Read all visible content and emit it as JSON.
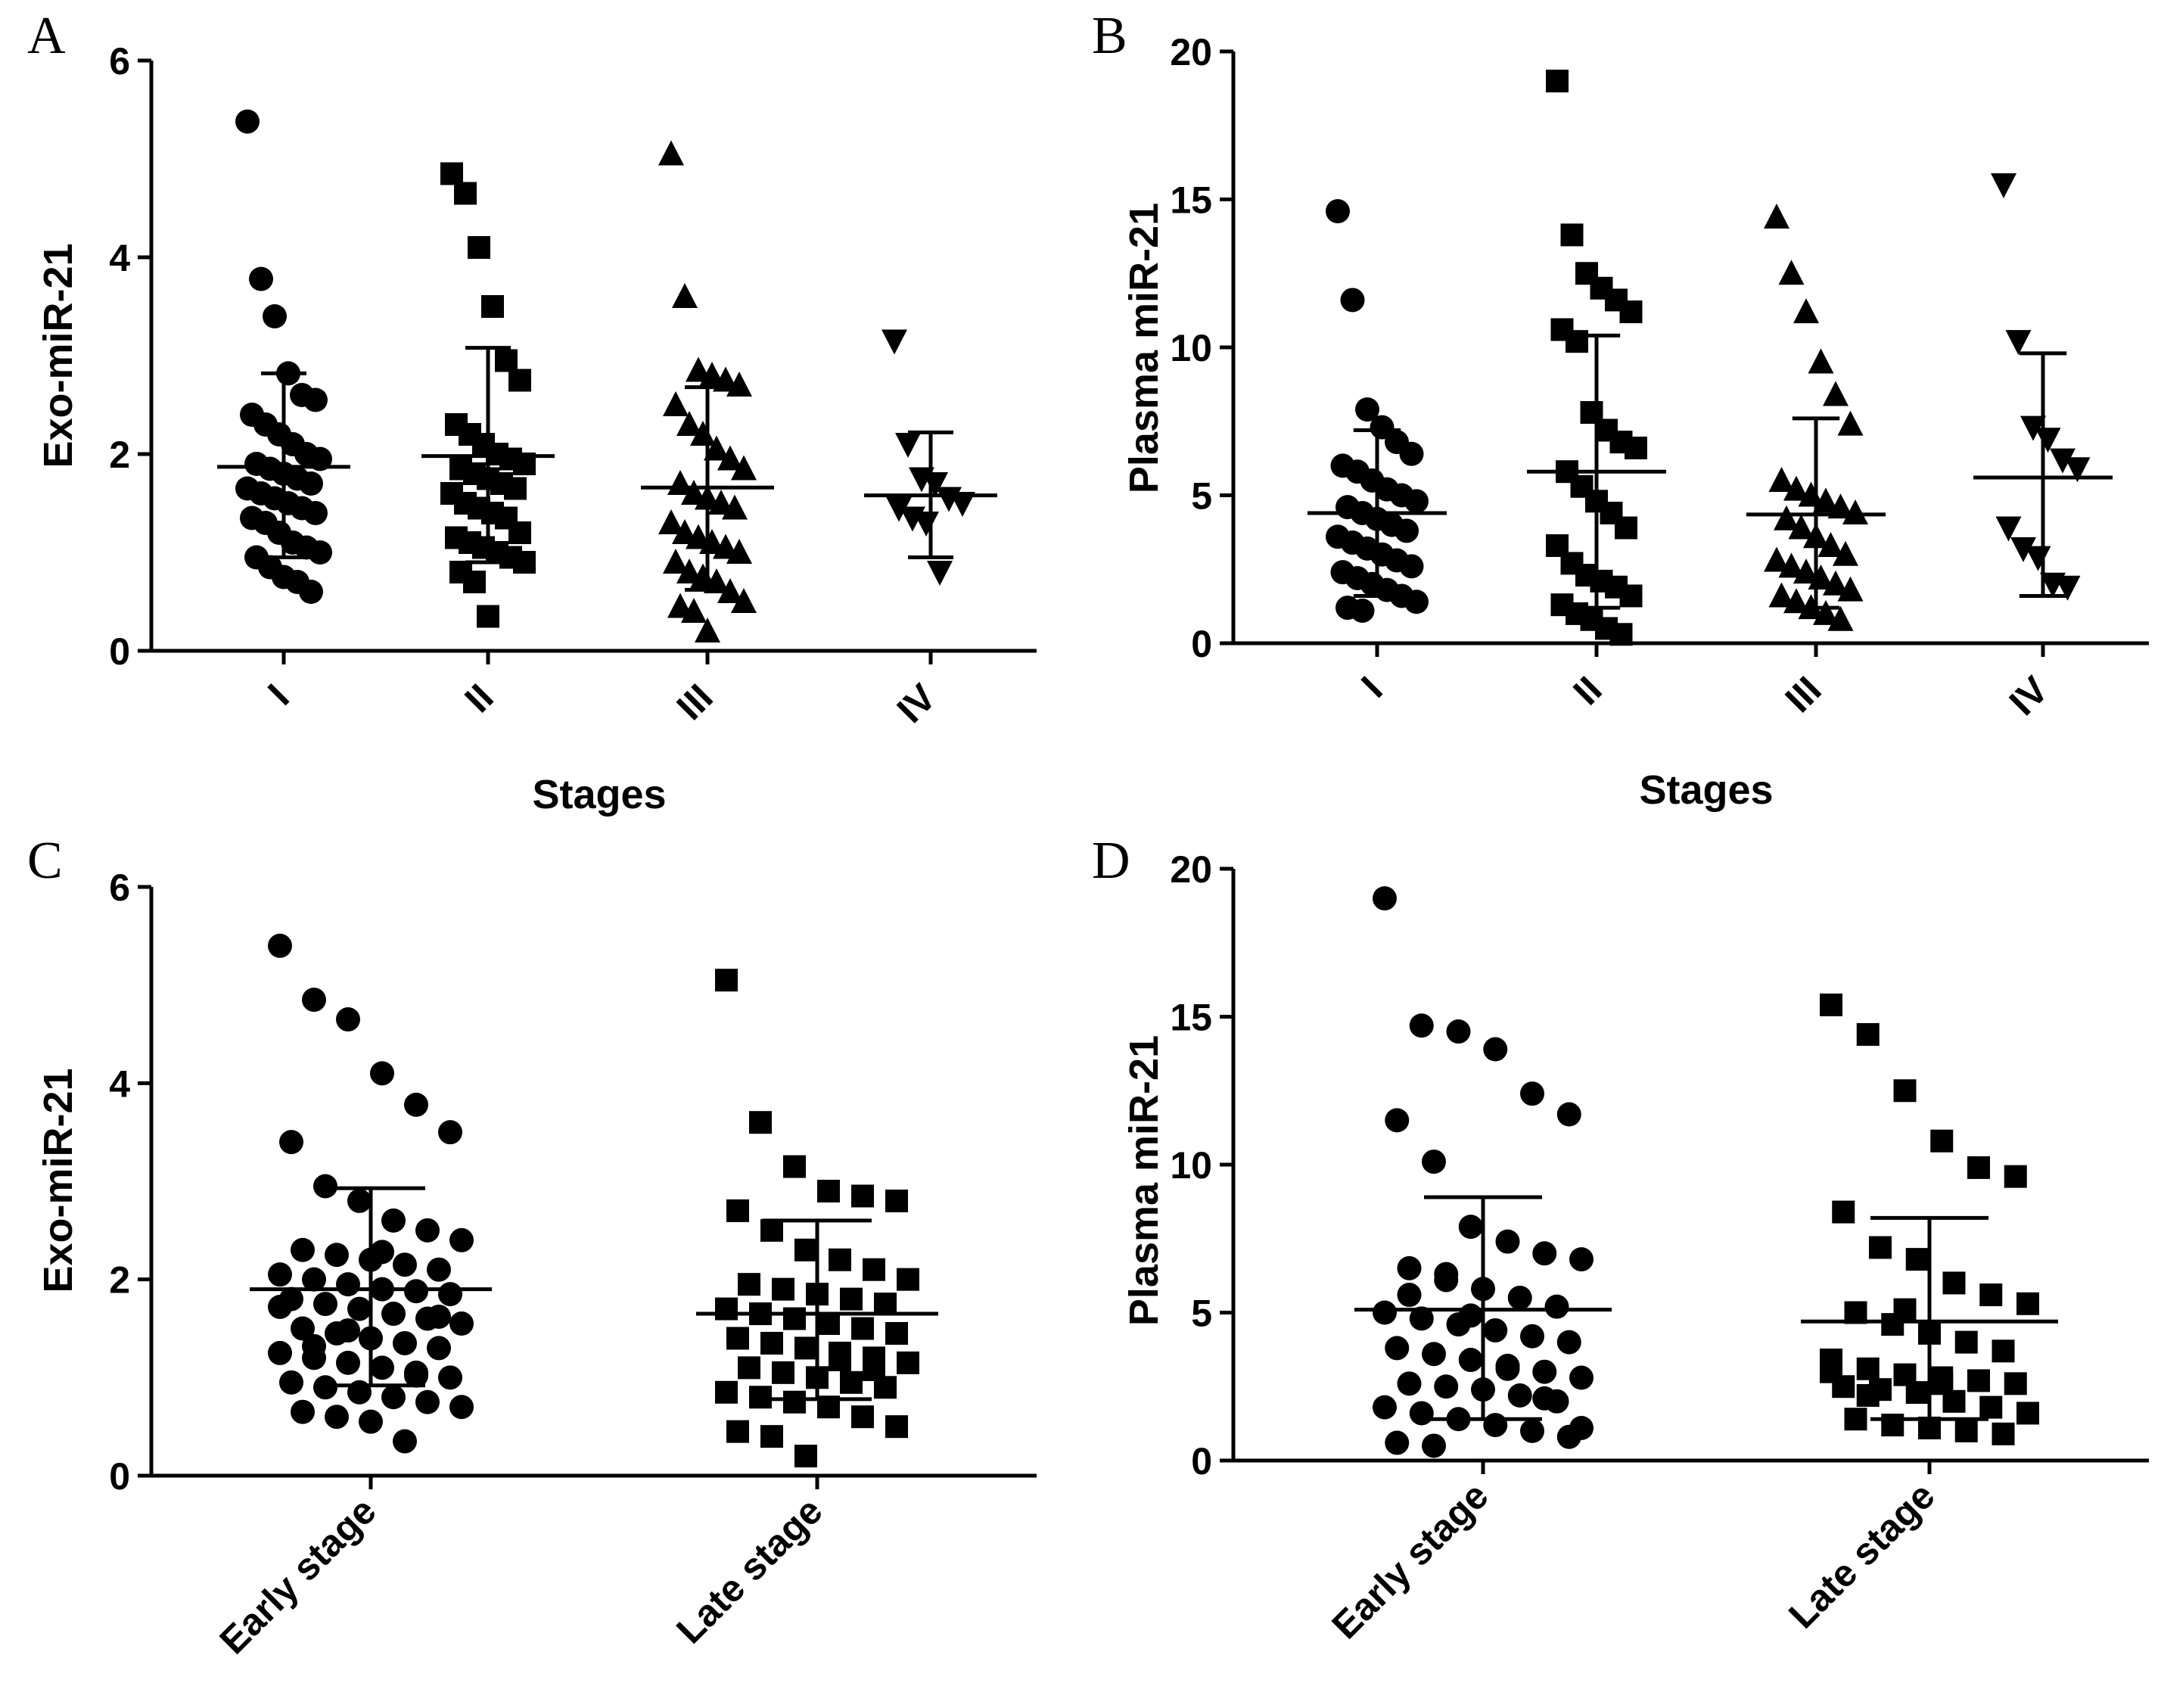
{
  "figure": {
    "color_marker": "#000000",
    "background": "#ffffff"
  },
  "chart_data": [
    {
      "panel": "A",
      "type": "scatter",
      "ylabel": "Exo-miR-21",
      "xlabel": "Stages",
      "ylim": [
        0,
        6
      ],
      "yticks": [
        0,
        2,
        4,
        6
      ],
      "categories": [
        "I",
        "II",
        "III",
        "IV"
      ],
      "series": [
        {
          "name": "I",
          "marker": "circle",
          "mean": 1.87,
          "sd_low": 0.95,
          "sd_high": 2.82,
          "values": [
            5.38,
            3.78,
            3.4,
            2.82,
            2.6,
            2.55,
            2.4,
            2.3,
            2.2,
            2.1,
            2.0,
            1.95,
            1.9,
            1.85,
            1.8,
            1.75,
            1.7,
            1.65,
            1.6,
            1.55,
            1.5,
            1.45,
            1.4,
            1.35,
            1.3,
            1.2,
            1.1,
            1.05,
            1.0,
            0.95,
            0.85,
            0.75,
            0.7,
            0.6
          ]
        },
        {
          "name": "II",
          "marker": "square",
          "mean": 1.98,
          "sd_low": 0.9,
          "sd_high": 3.08,
          "values": [
            4.85,
            4.65,
            4.1,
            3.5,
            2.95,
            2.75,
            2.3,
            2.2,
            2.1,
            2.0,
            1.95,
            1.9,
            1.85,
            1.8,
            1.75,
            1.7,
            1.65,
            1.6,
            1.5,
            1.45,
            1.4,
            1.35,
            1.2,
            1.15,
            1.1,
            1.05,
            1.0,
            0.95,
            0.9,
            0.8,
            0.7,
            0.35
          ]
        },
        {
          "name": "III",
          "marker": "triangle-up",
          "mean": 1.66,
          "sd_low": 0.62,
          "sd_high": 2.68,
          "values": [
            5.05,
            3.6,
            2.85,
            2.8,
            2.75,
            2.7,
            2.5,
            2.3,
            2.2,
            2.05,
            1.95,
            1.85,
            1.7,
            1.6,
            1.55,
            1.5,
            1.45,
            1.3,
            1.2,
            1.15,
            1.1,
            1.05,
            1.0,
            0.9,
            0.8,
            0.75,
            0.7,
            0.6,
            0.5,
            0.45,
            0.4,
            0.2
          ]
        },
        {
          "name": "IV",
          "marker": "triangle-down",
          "mean": 1.58,
          "sd_low": 0.95,
          "sd_high": 2.22,
          "values": [
            3.15,
            2.1,
            1.75,
            1.7,
            1.55,
            1.5,
            1.45,
            1.35,
            1.3,
            0.8
          ]
        }
      ]
    },
    {
      "panel": "B",
      "type": "scatter",
      "ylabel": "Plasma miR-21",
      "xlabel": "Stages",
      "ylim": [
        0,
        20
      ],
      "yticks": [
        0,
        5,
        10,
        15,
        20
      ],
      "categories": [
        "I",
        "II",
        "III",
        "IV"
      ],
      "series": [
        {
          "name": "I",
          "marker": "circle",
          "mean": 4.4,
          "sd_low": 1.6,
          "sd_high": 7.2,
          "values": [
            14.6,
            11.6,
            7.9,
            7.3,
            6.8,
            6.4,
            6.0,
            5.8,
            5.5,
            5.2,
            5.0,
            4.8,
            4.6,
            4.4,
            4.2,
            4.0,
            3.8,
            3.6,
            3.4,
            3.2,
            3.0,
            2.8,
            2.6,
            2.4,
            2.2,
            2.0,
            1.8,
            1.6,
            1.4,
            1.2,
            1.1
          ]
        },
        {
          "name": "II",
          "marker": "square",
          "mean": 5.8,
          "sd_low": 1.2,
          "sd_high": 10.4,
          "values": [
            19.0,
            13.8,
            12.5,
            12.0,
            11.6,
            11.2,
            10.6,
            10.2,
            7.8,
            7.2,
            6.8,
            6.6,
            5.8,
            5.3,
            4.8,
            4.4,
            3.9,
            3.3,
            2.7,
            2.3,
            2.1,
            1.9,
            1.6,
            1.3,
            1.0,
            0.8,
            0.5,
            0.3
          ]
        },
        {
          "name": "III",
          "marker": "triangle-up",
          "mean": 4.35,
          "sd_low": 1.2,
          "sd_high": 7.6,
          "values": [
            14.4,
            12.5,
            11.2,
            9.5,
            8.4,
            7.4,
            5.5,
            5.2,
            5.0,
            4.8,
            4.6,
            4.4,
            4.2,
            3.9,
            3.6,
            3.3,
            3.0,
            2.8,
            2.6,
            2.4,
            2.2,
            2.0,
            1.8,
            1.6,
            1.4,
            1.2,
            1.0,
            0.8
          ]
        },
        {
          "name": "IV",
          "marker": "triangle-down",
          "mean": 5.6,
          "sd_low": 1.6,
          "sd_high": 9.8,
          "values": [
            15.5,
            10.2,
            7.3,
            6.9,
            6.2,
            5.9,
            3.9,
            3.2,
            2.9,
            2.0,
            1.9
          ]
        }
      ]
    },
    {
      "panel": "C",
      "type": "scatter",
      "ylabel": "Exo-miR-21",
      "xlabel": "",
      "ylim": [
        0,
        6
      ],
      "yticks": [
        0,
        2,
        4,
        6
      ],
      "categories": [
        "Early stage",
        "Late stage"
      ],
      "series": [
        {
          "name": "Early stage",
          "marker": "circle",
          "mean": 1.9,
          "sd_low": 0.92,
          "sd_high": 2.93,
          "values": [
            5.4,
            4.85,
            4.65,
            4.1,
            3.78,
            3.5,
            3.4,
            2.95,
            2.8,
            2.6,
            2.5,
            2.4,
            2.3,
            2.25,
            2.2,
            2.15,
            2.1,
            2.05,
            2.0,
            1.95,
            1.9,
            1.88,
            1.85,
            1.8,
            1.75,
            1.7,
            1.65,
            1.6,
            1.55,
            1.5,
            1.45,
            1.4,
            1.35,
            1.3,
            1.25,
            1.2,
            1.15,
            1.1,
            1.05,
            1.0,
            0.95,
            0.9,
            0.85,
            0.8,
            0.75,
            0.7,
            0.65,
            0.6,
            0.55,
            0.35,
            1.62,
            1.72,
            1.32,
            1.48,
            2.28,
            1.02
          ]
        },
        {
          "name": "Late stage",
          "marker": "square",
          "mean": 1.65,
          "sd_low": 0.78,
          "sd_high": 2.6,
          "values": [
            5.05,
            3.6,
            3.15,
            2.9,
            2.85,
            2.8,
            2.7,
            2.5,
            2.3,
            2.2,
            2.1,
            2.0,
            1.95,
            1.9,
            1.85,
            1.8,
            1.75,
            1.7,
            1.65,
            1.6,
            1.55,
            1.5,
            1.45,
            1.4,
            1.35,
            1.3,
            1.25,
            1.2,
            1.15,
            1.1,
            1.05,
            1.0,
            0.95,
            0.9,
            0.85,
            0.8,
            0.75,
            0.7,
            0.6,
            0.5,
            0.45,
            0.4,
            0.2,
            1.18,
            1.08
          ]
        }
      ]
    },
    {
      "panel": "D",
      "type": "scatter",
      "ylabel": "Plasma miR-21",
      "xlabel": "",
      "ylim": [
        0,
        20
      ],
      "yticks": [
        0,
        5,
        10,
        15,
        20
      ],
      "categories": [
        "Early stage",
        "Late stage"
      ],
      "series": [
        {
          "name": "Early stage",
          "marker": "circle",
          "mean": 5.1,
          "sd_low": 1.4,
          "sd_high": 8.9,
          "values": [
            19.0,
            14.7,
            14.5,
            13.9,
            12.4,
            11.7,
            11.5,
            10.1,
            7.9,
            7.4,
            7.0,
            6.8,
            6.5,
            6.1,
            5.8,
            5.5,
            5.2,
            5.0,
            4.8,
            4.6,
            4.4,
            4.2,
            4.0,
            3.8,
            3.6,
            3.4,
            3.2,
            3.0,
            2.8,
            2.6,
            2.5,
            2.4,
            2.2,
            2.0,
            1.8,
            1.6,
            1.4,
            1.2,
            1.0,
            0.8,
            0.6,
            0.5,
            4.9,
            3.1,
            2.1,
            1.1,
            5.6,
            6.3
          ]
        },
        {
          "name": "Late stage",
          "marker": "square",
          "mean": 4.7,
          "sd_low": 1.4,
          "sd_high": 8.2,
          "values": [
            15.4,
            14.4,
            12.5,
            10.8,
            9.9,
            9.6,
            8.4,
            7.2,
            6.8,
            6.0,
            5.6,
            5.3,
            5.0,
            4.6,
            4.3,
            4.0,
            3.7,
            3.4,
            3.1,
            2.9,
            2.8,
            2.7,
            2.6,
            2.5,
            2.4,
            2.3,
            2.0,
            1.8,
            1.6,
            1.4,
            1.2,
            1.1,
            1.0,
            0.9,
            3.0,
            2.2,
            5.1,
            2.6
          ]
        }
      ]
    }
  ]
}
